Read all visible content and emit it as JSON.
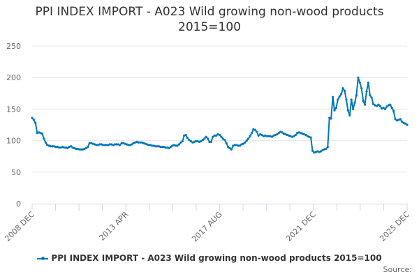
{
  "title": "PPI INDEX IMPORT - A023 Wild growing non-wood products 2015=100",
  "title_line1": "PPI INDEX IMPORT - A023 Wild growing non-wood products",
  "title_line2": "2015=100",
  "legend": {
    "label": "PPI INDEX IMPORT - A023 Wild growing non-wood products 2015=100"
  },
  "source_label": "Source:",
  "colors": {
    "series": "#0077bb",
    "grid": "#e6e6e6",
    "axis": "#ccd6eb",
    "text": "#333333",
    "tick": "#666666"
  },
  "chart_data": {
    "type": "line",
    "title": "PPI INDEX IMPORT - A023 Wild growing non-wood products 2015=100",
    "xlabel": "",
    "ylabel": "",
    "ylim": [
      0,
      250
    ],
    "yticks": [
      0,
      50,
      100,
      150,
      200,
      250
    ],
    "xtick_labels": [
      "2008 DEC",
      "2013 APR",
      "2017 AUG",
      "2021 DEC",
      "2025 DEC"
    ],
    "grid": true,
    "legend_position": "bottom",
    "start": "2008 DEC",
    "end": "2025 DEC",
    "frequency": "monthly",
    "series": [
      {
        "name": "PPI INDEX IMPORT - A023 Wild growing non-wood products 2015=100",
        "values": [
          136,
          133,
          128,
          112,
          113,
          112,
          111,
          103,
          97,
          93,
          92,
          91,
          91,
          91,
          90,
          90,
          89,
          89,
          90,
          89,
          89,
          88,
          90,
          91,
          89,
          88,
          87,
          87,
          86,
          86,
          86,
          87,
          88,
          90,
          96,
          96,
          95,
          94,
          93,
          93,
          94,
          94,
          93,
          93,
          93,
          93,
          94,
          94,
          93,
          94,
          94,
          94,
          93,
          96,
          96,
          95,
          94,
          93,
          93,
          94,
          96,
          97,
          98,
          97,
          97,
          97,
          96,
          95,
          94,
          93,
          93,
          92,
          92,
          91,
          91,
          91,
          90,
          90,
          90,
          89,
          89,
          88,
          90,
          92,
          93,
          92,
          92,
          94,
          97,
          99,
          108,
          109,
          104,
          101,
          99,
          97,
          98,
          99,
          99,
          98,
          99,
          101,
          103,
          106,
          103,
          98,
          98,
          106,
          108,
          108,
          110,
          109,
          106,
          103,
          101,
          96,
          90,
          88,
          86,
          92,
          93,
          93,
          92,
          92,
          94,
          95,
          97,
          100,
          103,
          107,
          112,
          118,
          117,
          114,
          108,
          110,
          109,
          107,
          108,
          107,
          107,
          107,
          106,
          108,
          109,
          110,
          112,
          114,
          113,
          111,
          110,
          109,
          108,
          107,
          106,
          107,
          109,
          112,
          113,
          112,
          111,
          110,
          109,
          107,
          106,
          105,
          84,
          81,
          82,
          83,
          82,
          83,
          85,
          86,
          87,
          90,
          136,
          135,
          169,
          148,
          152,
          165,
          170,
          174,
          183,
          179,
          165,
          148,
          140,
          165,
          150,
          160,
          172,
          200,
          192,
          183,
          163,
          157,
          178,
          192,
          172,
          168,
          158,
          156,
          155,
          157,
          155,
          151,
          152,
          150,
          154,
          156,
          157,
          152,
          147,
          134,
          132,
          133,
          134,
          130,
          128,
          127,
          125
        ]
      }
    ]
  }
}
